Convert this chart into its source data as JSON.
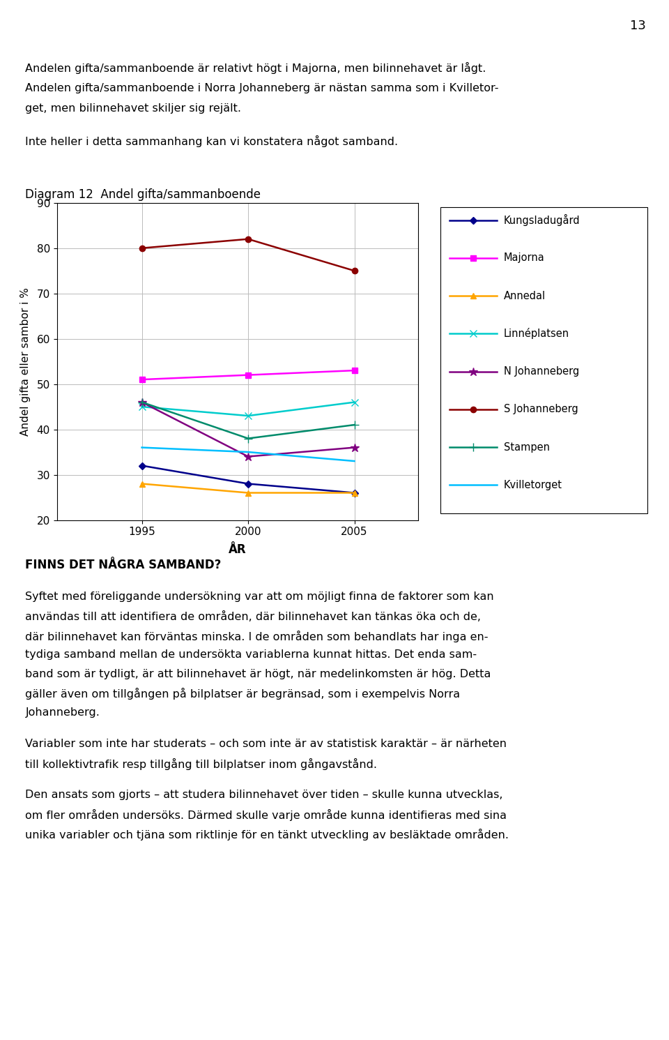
{
  "page_number": "13",
  "diagram_title": "Diagram 12  Andel gifta/sammanboende",
  "xlabel": "ÅR",
  "ylabel": "Andel gifta eller sambor i %",
  "years": [
    1995,
    2000,
    2005
  ],
  "ylim": [
    20,
    90
  ],
  "yticks": [
    20,
    30,
    40,
    50,
    60,
    70,
    80,
    90
  ],
  "series": [
    {
      "label": "Kungsladugård",
      "color": "#00008B",
      "marker": "D",
      "markersize": 5,
      "values": [
        32,
        28,
        26
      ]
    },
    {
      "label": "Majorna",
      "color": "#FF00FF",
      "marker": "s",
      "markersize": 6,
      "values": [
        51,
        52,
        53
      ]
    },
    {
      "label": "Annedal",
      "color": "#FFA500",
      "marker": "^",
      "markersize": 6,
      "values": [
        28,
        26,
        26
      ]
    },
    {
      "label": "Linnéplatsen",
      "color": "#00CCCC",
      "marker": "x",
      "markersize": 7,
      "values": [
        45,
        43,
        46
      ]
    },
    {
      "label": "N Johanneberg",
      "color": "#800080",
      "marker": "*",
      "markersize": 9,
      "values": [
        46,
        34,
        36
      ]
    },
    {
      "label": "S Johanneberg",
      "color": "#8B0000",
      "marker": "o",
      "markersize": 6,
      "values": [
        80,
        82,
        75
      ]
    },
    {
      "label": "Stampen",
      "color": "#008B6B",
      "marker": "+",
      "markersize": 8,
      "values": [
        46,
        38,
        41
      ]
    },
    {
      "label": "Kvilletorget",
      "color": "#00BFFF",
      "marker": "None",
      "markersize": 6,
      "values": [
        36,
        35,
        33
      ]
    }
  ],
  "intro_lines": [
    "Andelen gifta/sammanboende är relativt högt i Majorna, men bilinnehavet är lågt.",
    "Andelen gifta/sammanboende i Norra Johanneberg är nästan samma som i Kvilletor-",
    "get, men bilinnehavet skiljer sig rejält.",
    "",
    "Inte heller i detta sammanhang kan vi konstatera något samband."
  ],
  "section_heading": "FINNS DET NÅGRA SAMBAND?",
  "paragraphs": [
    [
      "Syftet med föreliggande undersökning var att om möjligt finna de faktorer som kan",
      "användas till att identifiera de områden, där bilinnehavet kan tänkas öka och de,",
      "där bilinnehavet kan förväntas minska. I de områden som behandlats har inga en-",
      "tydiga samband mellan de undersökta variablerna kunnat hittas. Det enda sam-",
      "band som är tydligt, är att bilinnehavet är högt, när medelinkomsten är hög. Detta",
      "gäller även om tillgången på bilplatser är begränsad, som i exempelvis Norra",
      "Johanneberg."
    ],
    [
      "Variabler som inte har studerats – och som inte är av statistisk karaktär – är närheten",
      "till kollektivtrafik resp tillgång till bilplatser inom gångavstånd."
    ],
    [
      "Den ansats som gjorts – att studera bilinnehavet över tiden – skulle kunna utvecklas,",
      "om fler områden undersöks. Därmed skulle varje område kunna identifieras med sina",
      "unika variabler och tjäna som riktlinje för en tänkt utveckling av besläktade områden."
    ]
  ]
}
